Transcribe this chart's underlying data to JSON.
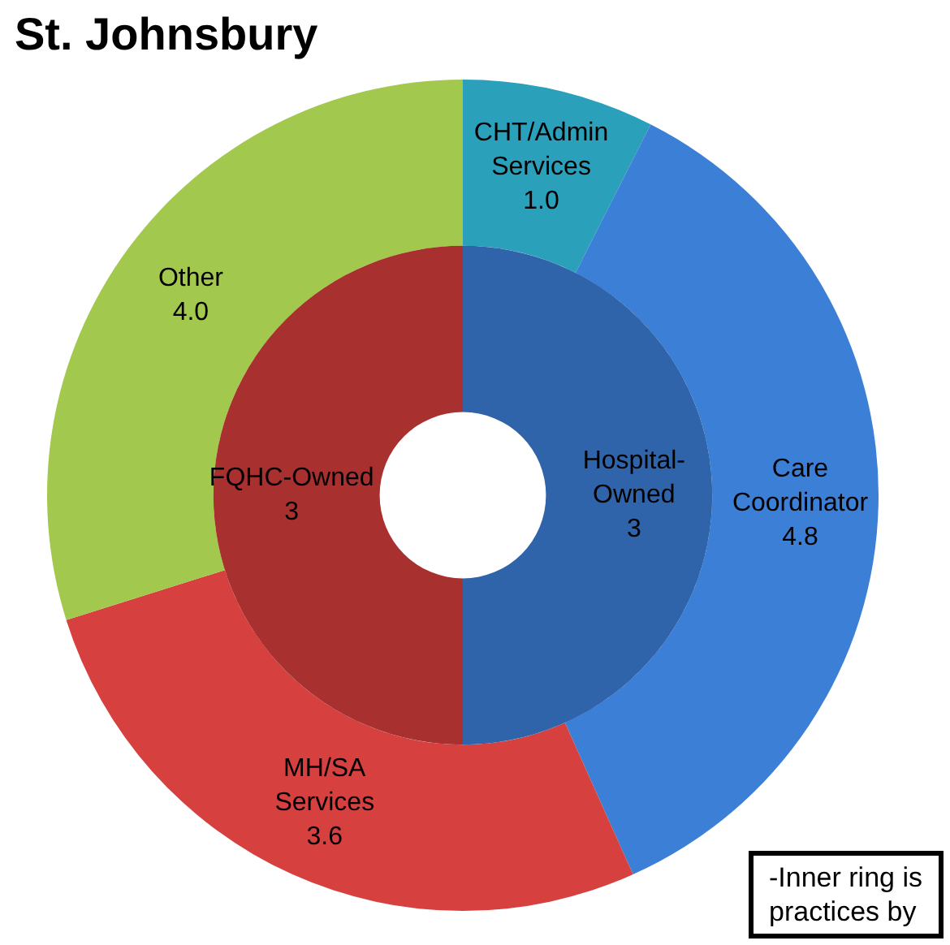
{
  "chart_data": [
    {
      "type": "donut",
      "title": "St. Johnsbury",
      "categories": [
        "CHT/Admin Services",
        "Care Coordinator",
        "MH/SA Services",
        "Other"
      ],
      "values": [
        1.0,
        4.8,
        3.6,
        4.0
      ],
      "value_labels": [
        "1.0",
        "4.8",
        "3.6",
        "4.0"
      ],
      "colors": [
        "#2aa0bb",
        "#3b7fd6",
        "#d6403f",
        "#a2c94e"
      ],
      "annotations": [
        "-Inner ring is",
        "practices by"
      ]
    },
    {
      "type": "donut",
      "categories": [
        "Hospital-Owned",
        "FQHC-Owned"
      ],
      "values": [
        3,
        3
      ],
      "value_labels": [
        "3",
        "3"
      ],
      "colors": [
        "#2f64aa",
        "#a8302f"
      ]
    }
  ]
}
